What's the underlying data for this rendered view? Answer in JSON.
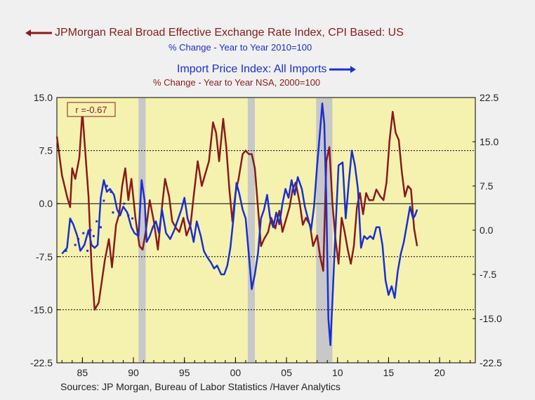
{
  "title_left": "JPMorgan Real Broad Effective Exchange Rate Index, CPI Based: US",
  "subtitle_left": "% Change - Year to Year     2010=100",
  "title_right": "Import Price Index: All Imports",
  "subtitle_right": "% Change - Year to Year     NSA, 2000=100",
  "sources": "Sources:   JP Morgan, Bureau of Labor Statistics /Haver Analytics",
  "correlation": "r =-0.67",
  "colors": {
    "exchange": "#8b1a1a",
    "import": "#1a2fd0",
    "plot_bg": "#f5f2b0",
    "recession": "#c8c8c8"
  },
  "chart_data": {
    "type": "line",
    "x_range": [
      1982.5,
      2023.5
    ],
    "x_ticks": [
      1985,
      1990,
      1995,
      2000,
      2005,
      2010,
      2015,
      2020
    ],
    "x_tick_labels": [
      "85",
      "90",
      "95",
      "00",
      "05",
      "10",
      "15",
      "20"
    ],
    "left_axis": {
      "range": [
        -22.5,
        15.0
      ],
      "ticks": [
        15.0,
        7.5,
        0.0,
        -7.5,
        -15.0,
        -22.5
      ],
      "labels": [
        "15.0",
        "7.5",
        "0.0",
        "-7.5",
        "-15.0",
        "-22.5"
      ]
    },
    "right_axis": {
      "range": [
        -22.5,
        22.5
      ],
      "ticks": [
        22.5,
        15.0,
        7.5,
        0.0,
        -7.5,
        -15.0,
        -22.5
      ],
      "labels": [
        "22.5",
        "15.0",
        "7.5",
        "0.0",
        "-7.5",
        "-15.0",
        "-22.5"
      ]
    },
    "reference_lines_left": [
      7.5,
      0.0,
      -7.5,
      -15.0
    ],
    "recessions": [
      [
        1990.5,
        1991.2
      ],
      [
        2001.2,
        2001.9
      ],
      [
        2007.9,
        2009.5
      ]
    ],
    "series": [
      {
        "name": "JPMorgan Real Broad Effective Exchange Rate Index, CPI Based: US",
        "axis": "left",
        "points": [
          [
            1982.5,
            9.5
          ],
          [
            1983.0,
            4.0
          ],
          [
            1983.5,
            1.0
          ],
          [
            1983.8,
            -0.5
          ],
          [
            1984.0,
            5.0
          ],
          [
            1984.3,
            3.5
          ],
          [
            1984.7,
            6.5
          ],
          [
            1985.0,
            13.0
          ],
          [
            1985.3,
            7.0
          ],
          [
            1985.6,
            1.0
          ],
          [
            1985.9,
            -9.0
          ],
          [
            1986.2,
            -15.0
          ],
          [
            1986.6,
            -14.0
          ],
          [
            1986.8,
            -12.0
          ],
          [
            1987.2,
            -8.0
          ],
          [
            1987.6,
            -5.0
          ],
          [
            1987.9,
            -9.0
          ],
          [
            1988.3,
            -3.0
          ],
          [
            1988.6,
            -1.5
          ],
          [
            1988.9,
            2.5
          ],
          [
            1989.2,
            5.0
          ],
          [
            1989.5,
            0.5
          ],
          [
            1989.8,
            3.5
          ],
          [
            1990.2,
            -2.0
          ],
          [
            1990.6,
            -6.0
          ],
          [
            1990.9,
            -6.5
          ],
          [
            1991.2,
            -4.0
          ],
          [
            1991.6,
            0.5
          ],
          [
            1992.0,
            -2.5
          ],
          [
            1992.4,
            -6.5
          ],
          [
            1992.8,
            -0.5
          ],
          [
            1993.1,
            3.5
          ],
          [
            1993.5,
            1.0
          ],
          [
            1993.8,
            -2.5
          ],
          [
            1994.2,
            -3.5
          ],
          [
            1994.5,
            -4.0
          ],
          [
            1994.9,
            -2.0
          ],
          [
            1995.2,
            -4.5
          ],
          [
            1995.6,
            -3.0
          ],
          [
            1995.9,
            1.0
          ],
          [
            1996.3,
            6.0
          ],
          [
            1996.7,
            2.5
          ],
          [
            1997.0,
            4.0
          ],
          [
            1997.4,
            6.0
          ],
          [
            1997.8,
            11.5
          ],
          [
            1998.1,
            10.0
          ],
          [
            1998.4,
            6.0
          ],
          [
            1998.8,
            12.0
          ],
          [
            1999.1,
            8.0
          ],
          [
            1999.4,
            2.0
          ],
          [
            1999.7,
            -2.5
          ],
          [
            2000.0,
            1.5
          ],
          [
            2000.3,
            3.5
          ],
          [
            2000.7,
            7.0
          ],
          [
            2001.0,
            7.5
          ],
          [
            2001.3,
            7.0
          ],
          [
            2001.6,
            7.0
          ],
          [
            2001.9,
            5.0
          ],
          [
            2002.2,
            -0.5
          ],
          [
            2002.5,
            -6.0
          ],
          [
            2002.8,
            -5.0
          ],
          [
            2003.2,
            -4.0
          ],
          [
            2003.5,
            -2.0
          ],
          [
            2003.9,
            -3.5
          ],
          [
            2004.3,
            -1.0
          ],
          [
            2004.6,
            -4.0
          ],
          [
            2004.9,
            -2.5
          ],
          [
            2005.3,
            -0.5
          ],
          [
            2005.6,
            2.0
          ],
          [
            2005.9,
            3.0
          ],
          [
            2006.3,
            0.0
          ],
          [
            2006.6,
            -3.0
          ],
          [
            2006.9,
            -2.0
          ],
          [
            2007.3,
            -3.0
          ],
          [
            2007.6,
            -6.0
          ],
          [
            2008.0,
            -4.5
          ],
          [
            2008.3,
            -7.5
          ],
          [
            2008.6,
            -9.5
          ],
          [
            2008.9,
            6.0
          ],
          [
            2009.2,
            8.0
          ],
          [
            2009.5,
            0.0
          ],
          [
            2009.8,
            -5.0
          ],
          [
            2010.1,
            -8.5
          ],
          [
            2010.4,
            -2.0
          ],
          [
            2010.7,
            -4.0
          ],
          [
            2011.0,
            -6.5
          ],
          [
            2011.3,
            -8.5
          ],
          [
            2011.6,
            -6.0
          ],
          [
            2011.9,
            -0.5
          ],
          [
            2012.2,
            1.5
          ],
          [
            2012.5,
            -1.5
          ],
          [
            2012.8,
            1.5
          ],
          [
            2013.1,
            0.5
          ],
          [
            2013.5,
            0.5
          ],
          [
            2013.8,
            2.0
          ],
          [
            2014.2,
            1.0
          ],
          [
            2014.5,
            0.5
          ],
          [
            2014.8,
            3.0
          ],
          [
            2015.1,
            9.0
          ],
          [
            2015.4,
            13.0
          ],
          [
            2015.7,
            10.0
          ],
          [
            2016.0,
            9.0
          ],
          [
            2016.3,
            4.5
          ],
          [
            2016.6,
            1.0
          ],
          [
            2016.9,
            2.5
          ],
          [
            2017.2,
            2.0
          ],
          [
            2017.5,
            -3.5
          ],
          [
            2017.8,
            -6.0
          ]
        ]
      },
      {
        "name": "Import Price Index: All Imports",
        "axis": "right",
        "points": [
          [
            1983.0,
            -4.0
          ],
          [
            1983.5,
            -3.0
          ],
          [
            1983.8,
            2.0
          ],
          [
            1984.1,
            1.0
          ],
          [
            1984.5,
            -1.0
          ],
          [
            1984.8,
            -3.5
          ],
          [
            1985.2,
            -2.5
          ],
          [
            1985.6,
            0.0
          ],
          [
            1985.9,
            -2.5
          ],
          [
            1986.2,
            -3.0
          ],
          [
            1986.5,
            -2.5
          ],
          [
            1986.8,
            5.5
          ],
          [
            1987.1,
            8.5
          ],
          [
            1987.4,
            6.5
          ],
          [
            1987.7,
            7.0
          ],
          [
            1988.1,
            6.0
          ],
          [
            1988.4,
            3.5
          ],
          [
            1988.7,
            2.5
          ],
          [
            1989.0,
            4.0
          ],
          [
            1989.4,
            3.0
          ],
          [
            1989.8,
            0.5
          ],
          [
            1990.1,
            -0.5
          ],
          [
            1990.5,
            -1.0
          ],
          [
            1990.8,
            8.5
          ],
          [
            1991.1,
            5.0
          ],
          [
            1991.3,
            -2.0
          ],
          [
            1991.6,
            -1.0
          ],
          [
            1991.9,
            0.5
          ],
          [
            1992.2,
            1.5
          ],
          [
            1992.5,
            -0.5
          ],
          [
            1992.8,
            3.5
          ],
          [
            1993.2,
            -0.5
          ],
          [
            1993.6,
            -1.5
          ],
          [
            1994.0,
            0.0
          ],
          [
            1994.4,
            2.0
          ],
          [
            1994.7,
            3.5
          ],
          [
            1995.0,
            5.5
          ],
          [
            1995.3,
            2.0
          ],
          [
            1995.6,
            0.5
          ],
          [
            1995.9,
            -2.0
          ],
          [
            1996.2,
            1.5
          ],
          [
            1996.6,
            -1.0
          ],
          [
            1996.9,
            -3.5
          ],
          [
            1997.2,
            -4.5
          ],
          [
            1997.6,
            -5.5
          ],
          [
            1997.9,
            -6.5
          ],
          [
            1998.2,
            -6.0
          ],
          [
            1998.6,
            -7.5
          ],
          [
            1998.9,
            -7.5
          ],
          [
            1999.2,
            -6.0
          ],
          [
            1999.5,
            -3.0
          ],
          [
            1999.8,
            2.0
          ],
          [
            2000.1,
            8.0
          ],
          [
            2000.4,
            6.0
          ],
          [
            2000.7,
            3.5
          ],
          [
            2001.0,
            2.0
          ],
          [
            2001.3,
            -4.0
          ],
          [
            2001.6,
            -10.0
          ],
          [
            2001.9,
            -7.5
          ],
          [
            2002.2,
            -4.0
          ],
          [
            2002.5,
            2.0
          ],
          [
            2002.8,
            3.5
          ],
          [
            2003.1,
            6.0
          ],
          [
            2003.4,
            2.0
          ],
          [
            2003.7,
            0.5
          ],
          [
            2004.0,
            3.0
          ],
          [
            2004.3,
            1.0
          ],
          [
            2004.6,
            4.5
          ],
          [
            2004.9,
            7.0
          ],
          [
            2005.2,
            5.5
          ],
          [
            2005.5,
            8.5
          ],
          [
            2005.8,
            6.0
          ],
          [
            2006.1,
            9.0
          ],
          [
            2006.5,
            7.0
          ],
          [
            2006.8,
            4.0
          ],
          [
            2007.1,
            2.0
          ],
          [
            2007.4,
            0.0
          ],
          [
            2007.7,
            4.0
          ],
          [
            2008.0,
            11.0
          ],
          [
            2008.3,
            17.0
          ],
          [
            2008.5,
            21.5
          ],
          [
            2008.7,
            18.0
          ],
          [
            2008.9,
            5.0
          ],
          [
            2009.1,
            -15.0
          ],
          [
            2009.3,
            -19.5
          ],
          [
            2009.5,
            -12.0
          ],
          [
            2009.8,
            0.0
          ],
          [
            2010.1,
            11.0
          ],
          [
            2010.5,
            11.5
          ],
          [
            2010.8,
            2.0
          ],
          [
            2011.1,
            8.0
          ],
          [
            2011.4,
            13.5
          ],
          [
            2011.7,
            11.0
          ],
          [
            2012.0,
            7.0
          ],
          [
            2012.3,
            -3.0
          ],
          [
            2012.6,
            -1.0
          ],
          [
            2012.9,
            -1.5
          ],
          [
            2013.2,
            -1.0
          ],
          [
            2013.5,
            -1.5
          ],
          [
            2013.8,
            0.5
          ],
          [
            2014.1,
            0.5
          ],
          [
            2014.4,
            -2.5
          ],
          [
            2014.7,
            -8.5
          ],
          [
            2015.0,
            -11.0
          ],
          [
            2015.3,
            -9.5
          ],
          [
            2015.6,
            -11.5
          ],
          [
            2015.9,
            -7.0
          ],
          [
            2016.2,
            -4.0
          ],
          [
            2016.5,
            -2.0
          ],
          [
            2016.8,
            1.0
          ],
          [
            2017.1,
            4.0
          ],
          [
            2017.4,
            2.0
          ],
          [
            2017.6,
            2.5
          ],
          [
            2017.8,
            3.5
          ]
        ]
      },
      {
        "name": "Import Price Index: All Imports (dotted)",
        "axis": "right",
        "style": "dots",
        "points": [
          [
            1983.4,
            -3.5
          ],
          [
            1983.8,
            1.5
          ],
          [
            1984.3,
            -2.5
          ],
          [
            1984.6,
            -1.5
          ],
          [
            1985.1,
            -0.5
          ],
          [
            1985.5,
            -3.5
          ],
          [
            1985.8,
            0.0
          ],
          [
            1986.1,
            -1.0
          ],
          [
            1986.4,
            1.5
          ],
          [
            1986.8,
            0.5
          ],
          [
            1987.1,
            5.0
          ],
          [
            1987.4,
            7.5
          ],
          [
            1987.8,
            6.5
          ],
          [
            1988.0,
            3.0
          ],
          [
            1988.6,
            2.5
          ],
          [
            1989.1,
            4.5
          ],
          [
            1989.5,
            2.5
          ],
          [
            1989.9,
            2.0
          ]
        ]
      }
    ]
  }
}
